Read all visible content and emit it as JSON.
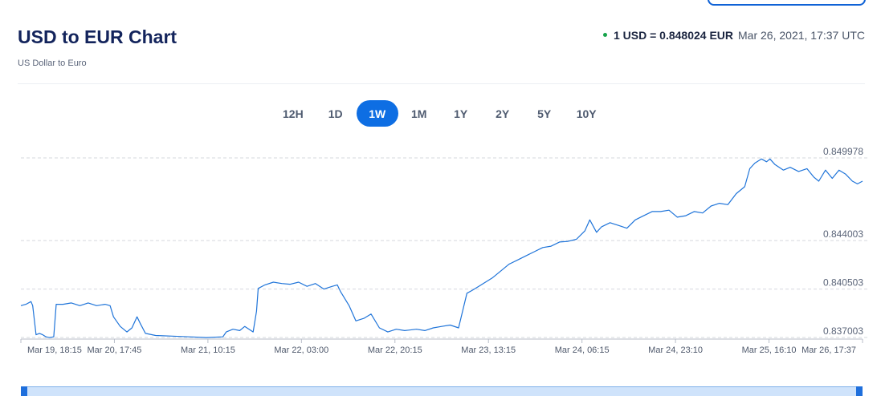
{
  "header": {
    "title": "USD to EUR Chart",
    "subtitle": "US Dollar to Euro",
    "rate_value": "1 USD = 0.848024 EUR",
    "rate_time": "Mar 26, 2021, 17:37 UTC"
  },
  "ranges": [
    {
      "label": "12H",
      "active": false
    },
    {
      "label": "1D",
      "active": false
    },
    {
      "label": "1W",
      "active": true
    },
    {
      "label": "1M",
      "active": false
    },
    {
      "label": "1Y",
      "active": false
    },
    {
      "label": "2Y",
      "active": false
    },
    {
      "label": "5Y",
      "active": false
    },
    {
      "label": "10Y",
      "active": false
    }
  ],
  "colors": {
    "line": "#1f74d9",
    "active_range": "#0e6ee3",
    "title": "#13245c",
    "live_dot": "#16a34a"
  },
  "chart_data": {
    "type": "line",
    "title": "",
    "xlabel": "",
    "ylabel": "",
    "ylim": [
      0.837003,
      0.849978
    ],
    "y_ticks": [
      "0.849978",
      "0.844003",
      "0.840503",
      "0.837003"
    ],
    "x_ticks": [
      "Mar 19, 18:15",
      "Mar 20, 17:45",
      "Mar 21, 10:15",
      "Mar 22, 03:00",
      "Mar 22, 20:15",
      "Mar 23, 13:15",
      "Mar 24, 06:15",
      "Mar 24, 23:10",
      "Mar 25, 16:10",
      "Mar 26, 17:37"
    ],
    "grid": true,
    "series": [
      {
        "values": [
          [
            0.0,
            0.8393
          ],
          [
            0.6,
            0.8394
          ],
          [
            1.2,
            0.8396
          ],
          [
            1.4,
            0.8393
          ],
          [
            1.8,
            0.8372
          ],
          [
            2.2,
            0.8373
          ],
          [
            2.6,
            0.8372
          ],
          [
            3.0,
            0.83705
          ],
          [
            3.4,
            0.837
          ],
          [
            3.9,
            0.83705
          ],
          [
            4.2,
            0.8394
          ],
          [
            5.0,
            0.8394
          ],
          [
            6.0,
            0.8395
          ],
          [
            7.0,
            0.8393
          ],
          [
            8.0,
            0.8395
          ],
          [
            9.0,
            0.8393
          ],
          [
            10.0,
            0.8394
          ],
          [
            10.6,
            0.8393
          ],
          [
            11.0,
            0.8385
          ],
          [
            11.8,
            0.8378
          ],
          [
            12.6,
            0.8374
          ],
          [
            13.2,
            0.8377
          ],
          [
            13.8,
            0.8385
          ],
          [
            14.2,
            0.838
          ],
          [
            14.8,
            0.8373
          ],
          [
            16.0,
            0.83715
          ],
          [
            18.0,
            0.8371
          ],
          [
            20.0,
            0.83705
          ],
          [
            22.0,
            0.837
          ],
          [
            24.0,
            0.83705
          ],
          [
            24.4,
            0.8374
          ],
          [
            25.2,
            0.8376
          ],
          [
            26.0,
            0.8375
          ],
          [
            26.6,
            0.8378
          ],
          [
            27.6,
            0.8374
          ],
          [
            28.0,
            0.8389
          ],
          [
            28.2,
            0.84055
          ],
          [
            29.0,
            0.8408
          ],
          [
            30.0,
            0.841
          ],
          [
            31.0,
            0.8409
          ],
          [
            32.0,
            0.84085
          ],
          [
            33.0,
            0.841
          ],
          [
            34.0,
            0.8407
          ],
          [
            35.0,
            0.8409
          ],
          [
            36.0,
            0.8405
          ],
          [
            37.0,
            0.8407
          ],
          [
            37.6,
            0.8408
          ],
          [
            38.0,
            0.8403
          ],
          [
            39.0,
            0.8393
          ],
          [
            39.8,
            0.8382
          ],
          [
            40.8,
            0.8384
          ],
          [
            41.6,
            0.8387
          ],
          [
            42.6,
            0.8377
          ],
          [
            43.6,
            0.8374
          ],
          [
            44.6,
            0.8376
          ],
          [
            45.6,
            0.8375
          ],
          [
            47.0,
            0.8376
          ],
          [
            48.0,
            0.8375
          ],
          [
            49.0,
            0.8377
          ],
          [
            50.0,
            0.8378
          ],
          [
            51.0,
            0.8379
          ],
          [
            52.0,
            0.8377
          ],
          [
            53.0,
            0.8402
          ],
          [
            53.6,
            0.8404
          ],
          [
            54.4,
            0.8407
          ],
          [
            55.2,
            0.841
          ],
          [
            56.0,
            0.8413
          ],
          [
            57.0,
            0.8418
          ],
          [
            58.0,
            0.8423
          ],
          [
            59.0,
            0.8426
          ],
          [
            60.0,
            0.8429
          ],
          [
            61.0,
            0.8432
          ],
          [
            62.0,
            0.8435
          ],
          [
            63.0,
            0.8436
          ],
          [
            64.0,
            0.8439
          ],
          [
            65.0,
            0.84395
          ],
          [
            66.0,
            0.8441
          ],
          [
            67.0,
            0.8447
          ],
          [
            67.6,
            0.8455
          ],
          [
            68.4,
            0.8446
          ],
          [
            69.0,
            0.845
          ],
          [
            70.0,
            0.8453
          ],
          [
            71.0,
            0.8451
          ],
          [
            72.0,
            0.8449
          ],
          [
            73.0,
            0.8455
          ],
          [
            74.0,
            0.8458
          ],
          [
            75.0,
            0.8461
          ],
          [
            76.0,
            0.8461
          ],
          [
            77.0,
            0.8462
          ],
          [
            78.0,
            0.8457
          ],
          [
            79.0,
            0.8458
          ],
          [
            80.0,
            0.8461
          ],
          [
            81.0,
            0.846
          ],
          [
            82.0,
            0.8465
          ],
          [
            83.0,
            0.8467
          ],
          [
            84.0,
            0.8466
          ],
          [
            85.0,
            0.8474
          ],
          [
            86.0,
            0.8479
          ],
          [
            86.6,
            0.8492
          ],
          [
            87.2,
            0.8496
          ],
          [
            88.0,
            0.8499
          ],
          [
            88.6,
            0.8497
          ],
          [
            89.0,
            0.8499
          ],
          [
            89.6,
            0.8495
          ],
          [
            90.6,
            0.8491
          ],
          [
            91.4,
            0.8493
          ],
          [
            92.4,
            0.849
          ],
          [
            93.4,
            0.8492
          ],
          [
            94.2,
            0.8486
          ],
          [
            94.8,
            0.8483
          ],
          [
            95.6,
            0.8491
          ],
          [
            96.4,
            0.8485
          ],
          [
            97.2,
            0.8491
          ],
          [
            98.0,
            0.8488
          ],
          [
            98.8,
            0.8483
          ],
          [
            99.4,
            0.8481
          ],
          [
            100.0,
            0.8483
          ]
        ]
      }
    ]
  }
}
